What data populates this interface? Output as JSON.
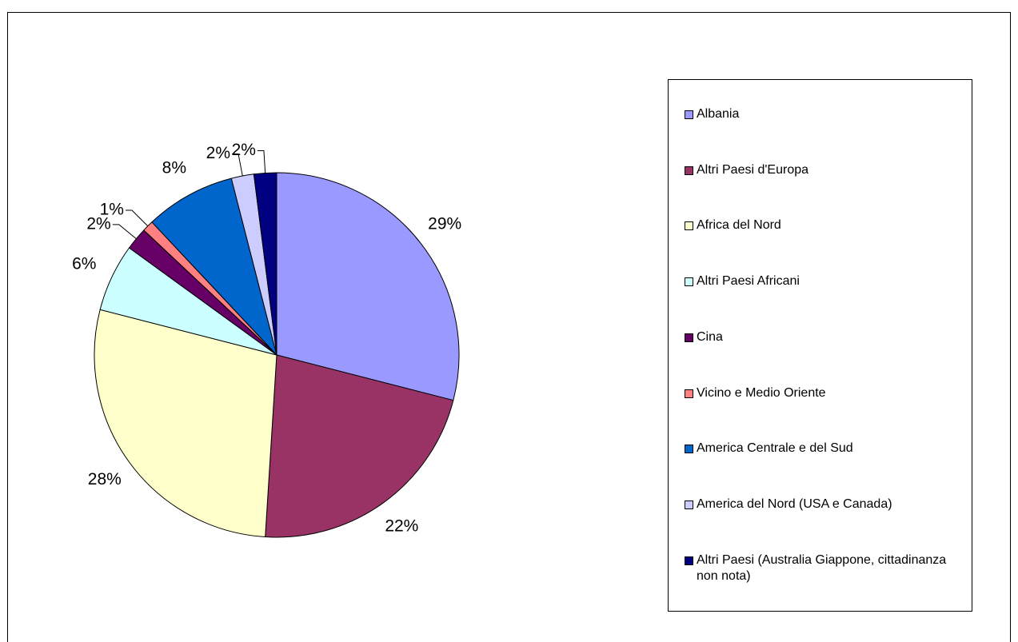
{
  "chart_data": {
    "type": "pie",
    "categories": [
      "Albania",
      "Altri Paesi d'Europa",
      "Africa del Nord",
      "Altri Paesi Africani",
      "Cina",
      "Vicino e Medio Oriente",
      "America Centrale e del Sud",
      "America del Nord (USA e Canada)",
      "Altri Paesi (Australia Giappone, cittadinanza non nota)"
    ],
    "values": [
      29,
      22,
      28,
      6,
      2,
      1,
      8,
      2,
      2
    ],
    "value_labels": [
      "29%",
      "22%",
      "28%",
      "6%",
      "2%",
      "1%",
      "8%",
      "2%",
      "2%"
    ],
    "colors": [
      "#9999ff",
      "#993366",
      "#ffffcc",
      "#ccffff",
      "#660066",
      "#ff8080",
      "#0066cc",
      "#ccccff",
      "#000080"
    ],
    "legend": "right"
  }
}
